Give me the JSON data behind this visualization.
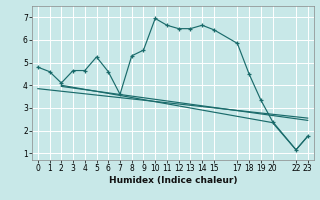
{
  "xlabel": "Humidex (Indice chaleur)",
  "bg_color": "#c8e8e8",
  "grid_color": "#ffffff",
  "line_color": "#1a6b6b",
  "xlim": [
    -0.5,
    23.5
  ],
  "ylim": [
    0.7,
    7.5
  ],
  "xticks": [
    0,
    1,
    2,
    3,
    4,
    5,
    6,
    7,
    8,
    9,
    10,
    11,
    12,
    13,
    14,
    15,
    17,
    18,
    19,
    20,
    22,
    23
  ],
  "yticks": [
    1,
    2,
    3,
    4,
    5,
    6,
    7
  ],
  "line1_x": [
    0,
    1,
    2,
    3,
    4,
    5,
    6,
    7,
    8,
    9,
    10,
    11,
    12,
    13,
    14,
    15,
    17,
    18,
    19,
    20,
    22,
    23
  ],
  "line1_y": [
    4.8,
    4.6,
    4.1,
    4.65,
    4.65,
    5.25,
    4.6,
    3.6,
    5.3,
    5.55,
    6.95,
    6.65,
    6.5,
    6.5,
    6.65,
    6.45,
    5.85,
    4.5,
    3.35,
    2.4,
    1.15,
    1.75
  ],
  "line2_x": [
    2,
    7,
    20,
    22,
    23
  ],
  "line2_y": [
    4.0,
    3.55,
    2.35,
    1.15,
    1.75
  ],
  "line3_x": [
    2,
    23
  ],
  "line3_y": [
    3.95,
    2.45
  ],
  "line4_x": [
    0,
    23
  ],
  "line4_y": [
    3.85,
    2.55
  ]
}
